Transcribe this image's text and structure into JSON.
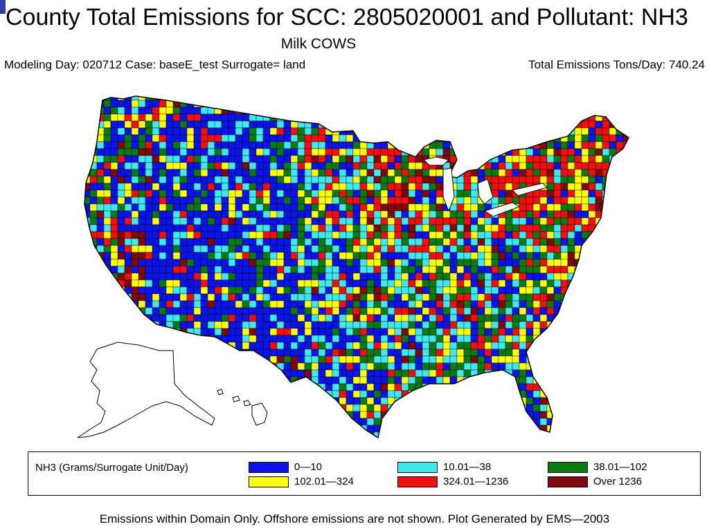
{
  "header": {
    "title": "County Total Emissions for SCC: 2805020001 and Pollutant: NH3",
    "subtitle": "Milk COWS",
    "info_left": "Modeling Day: 020712 Case: baseE_test Surrogate= land",
    "info_right": "Total Emissions Tons/Day: 740.24"
  },
  "legend": {
    "title": "NH3 (Grams/Surrogate Unit/Day)",
    "items": [
      {
        "label": "0—10",
        "color": "#0a14e6"
      },
      {
        "label": "10.01—38",
        "color": "#40e8f0"
      },
      {
        "label": "38.01—102",
        "color": "#0c7a12"
      },
      {
        "label": "102.01—324",
        "color": "#ffff10"
      },
      {
        "label": "324.01—1236",
        "color": "#f01010"
      },
      {
        "label": "Over 1236",
        "color": "#800808"
      }
    ]
  },
  "map": {
    "outline_color": "#000000",
    "no_data_color": "#ffffff"
  },
  "footer": "Emissions within Domain Only. Offshore emissions are not shown. Plot Generated by EMS—2003"
}
